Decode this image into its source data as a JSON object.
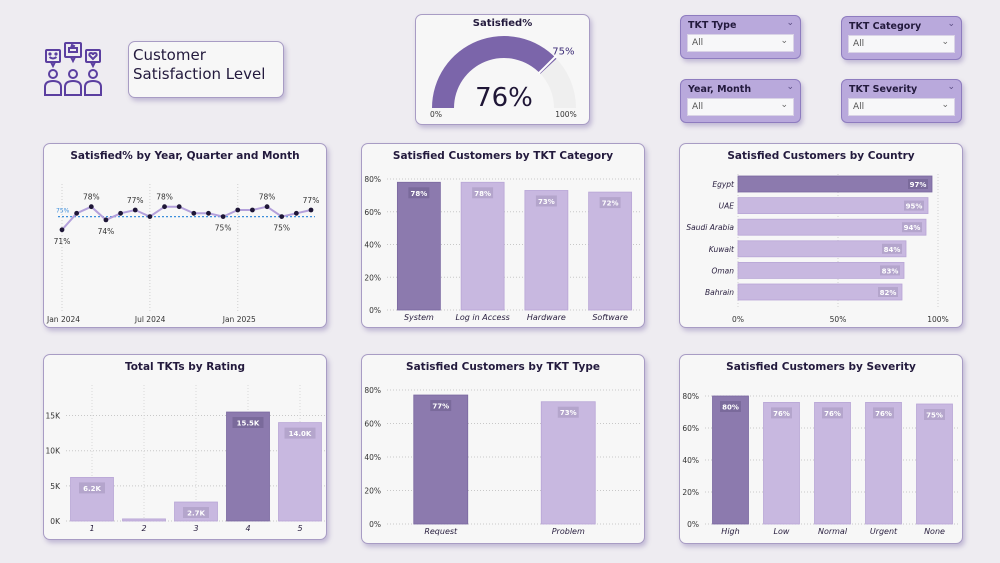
{
  "header": {
    "title_line1": "Customer",
    "title_line2": "Satisfaction Level",
    "logo_icon": "customer-feedback-icon"
  },
  "gauge": {
    "title": "Satisfied%",
    "value": 76,
    "value_label": "76%",
    "target": 75,
    "target_label": "75%",
    "min_label": "0%",
    "max_label": "100%",
    "min": 0,
    "max": 100
  },
  "slicers": [
    {
      "label": "TKT Type",
      "value": "All"
    },
    {
      "label": "TKT Category",
      "value": "All"
    },
    {
      "label": "Year, Month",
      "value": "All"
    },
    {
      "label": "TKT Severity",
      "value": "All"
    }
  ],
  "colors": {
    "dark_bar": "#8c7aae",
    "light_bar": "#c8b8e0",
    "line": "#b3a0db",
    "point": "#1e1637",
    "avg_line": "#3d8fdc",
    "gauge_fill": "#7b65aa",
    "gauge_track": "#efefef"
  },
  "chart_data": [
    {
      "id": "line",
      "type": "line",
      "title": "Satisfied% by Year, Quarter and Month",
      "x_tick_labels": [
        "Jan 2024",
        "Jul 2024",
        "Jan 2025"
      ],
      "x": [
        "Jan 2024",
        "Feb 2024",
        "Mar 2024",
        "Apr 2024",
        "May 2024",
        "Jun 2024",
        "Jul 2024",
        "Aug 2024",
        "Sep 2024",
        "Oct 2024",
        "Nov 2024",
        "Dec 2024",
        "Jan 2025",
        "Feb 2025",
        "Mar 2025",
        "Apr 2025",
        "May 2025",
        "Jun 2025"
      ],
      "values": [
        71,
        76,
        78,
        74,
        76,
        77,
        75,
        78,
        78,
        76,
        76,
        75,
        77,
        77,
        78,
        75,
        76,
        77
      ],
      "data_labels": [
        {
          "index": 0,
          "label": "71%",
          "pos": "below"
        },
        {
          "index": 2,
          "label": "78%",
          "pos": "above"
        },
        {
          "index": 3,
          "label": "74%",
          "pos": "below"
        },
        {
          "index": 5,
          "label": "77%",
          "pos": "above"
        },
        {
          "index": 7,
          "label": "78%",
          "pos": "above"
        },
        {
          "index": 11,
          "label": "75%",
          "pos": "below"
        },
        {
          "index": 14,
          "label": "78%",
          "pos": "above"
        },
        {
          "index": 15,
          "label": "75%",
          "pos": "below"
        },
        {
          "index": 17,
          "label": "77%",
          "pos": "above"
        }
      ],
      "average_line": {
        "value": 75,
        "label": "75%"
      },
      "ylim": [
        0,
        100
      ],
      "grid": "vertical-dotted"
    },
    {
      "id": "category",
      "type": "bar",
      "title": "Satisfied Customers by TKT Category",
      "categories": [
        "System",
        "Log in Access",
        "Hardware",
        "Software"
      ],
      "values": [
        78,
        78,
        73,
        72
      ],
      "labels": [
        "78%",
        "78%",
        "73%",
        "72%"
      ],
      "highlight": 0,
      "yticks": [
        "0%",
        "20%",
        "40%",
        "60%",
        "80%"
      ],
      "ylim": [
        0,
        80
      ]
    },
    {
      "id": "country",
      "type": "bar",
      "orientation": "horizontal",
      "title": "Satisfied Customers by Country",
      "categories": [
        "Egypt",
        "UAE",
        "Saudi Arabia",
        "Kuwait",
        "Oman",
        "Bahrain"
      ],
      "values": [
        97,
        95,
        94,
        84,
        83,
        82
      ],
      "labels": [
        "97%",
        "95%",
        "94%",
        "84%",
        "83%",
        "82%"
      ],
      "highlight": 0,
      "xticks": [
        "0%",
        "50%",
        "100%"
      ],
      "xlim": [
        0,
        100
      ]
    },
    {
      "id": "rating",
      "type": "bar",
      "title": "Total TKTs by Rating",
      "categories": [
        "1",
        "2",
        "3",
        "4",
        "5"
      ],
      "values": [
        6200,
        300,
        2700,
        15500,
        14000
      ],
      "labels": [
        "6.2K",
        "",
        "2.7K",
        "15.5K",
        "14.0K"
      ],
      "highlight": 3,
      "yticks": [
        "0K",
        "5K",
        "10K",
        "15K"
      ],
      "ylim": [
        0,
        16500
      ]
    },
    {
      "id": "type",
      "type": "bar",
      "title": "Satisfied Customers by TKT Type",
      "categories": [
        "Request",
        "Problem"
      ],
      "values": [
        77,
        73
      ],
      "labels": [
        "77%",
        "73%"
      ],
      "highlight": 0,
      "yticks": [
        "0%",
        "20%",
        "40%",
        "60%",
        "80%"
      ],
      "ylim": [
        0,
        80
      ]
    },
    {
      "id": "severity",
      "type": "bar",
      "title": "Satisfied Customers by Severity",
      "categories": [
        "High",
        "Low",
        "Normal",
        "Urgent",
        "None"
      ],
      "values": [
        80,
        76,
        76,
        76,
        75
      ],
      "labels": [
        "80%",
        "76%",
        "76%",
        "76%",
        "75%"
      ],
      "highlight": 0,
      "yticks": [
        "0%",
        "20%",
        "40%",
        "60%",
        "80%"
      ],
      "ylim": [
        0,
        80
      ]
    }
  ]
}
